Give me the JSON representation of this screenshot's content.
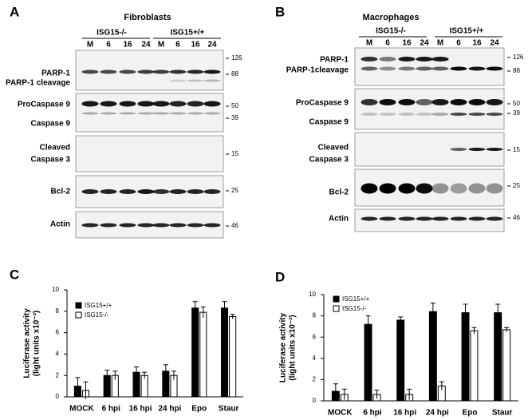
{
  "panel_a": {
    "label": "A",
    "title": "Fibroblasts",
    "groups": [
      "ISG15-/-",
      "ISG15+/+"
    ],
    "lanes": [
      "M",
      "6",
      "16",
      "24",
      "M",
      "6",
      "16",
      "24"
    ],
    "blots": [
      {
        "labels": [
          "PARP-1",
          "PARP-1 cleavage"
        ],
        "markers": [
          "126",
          "88"
        ]
      },
      {
        "labels": [
          "ProCaspase 9",
          "Caspase 9"
        ],
        "markers": [
          "50",
          "39"
        ]
      },
      {
        "labels": [
          "Cleaved",
          "Caspase 3"
        ],
        "markers": [
          "15"
        ]
      },
      {
        "labels": [
          "Bcl-2"
        ],
        "markers": [
          "25"
        ]
      },
      {
        "labels": [
          "Actin"
        ],
        "markers": [
          "46"
        ]
      }
    ]
  },
  "panel_b": {
    "label": "B",
    "title": "Macrophages",
    "groups": [
      "ISG15-/-",
      "ISG15+/+"
    ],
    "lanes": [
      "M",
      "6",
      "16",
      "24",
      "M",
      "6",
      "16",
      "24"
    ],
    "blots": [
      {
        "labels": [
          "PARP-1",
          "PARP-1cleavage"
        ],
        "markers": [
          "126",
          "88"
        ]
      },
      {
        "labels": [
          "ProCaspase 9",
          "Caspase 9"
        ],
        "markers": [
          "50",
          "39"
        ]
      },
      {
        "labels": [
          "Cleaved",
          "Caspase 3"
        ],
        "markers": [
          "15"
        ]
      },
      {
        "labels": [
          "Bcl-2"
        ],
        "markers": [
          "25"
        ]
      },
      {
        "labels": [
          "Actin"
        ],
        "markers": [
          "46"
        ]
      }
    ]
  },
  "chart_data": [
    {
      "type": "bar",
      "panel_label": "C",
      "y_label": [
        "Luciferase activity",
        "(light units x10⁻³)"
      ],
      "categories": [
        "MOCK",
        "6 hpi",
        "16 hpi",
        "24 hpi",
        "Epo",
        "Staur"
      ],
      "series": [
        {
          "name": "ISG15+/+",
          "color": "#000000",
          "values": [
            1.0,
            2.0,
            2.3,
            2.4,
            8.3,
            8.3
          ],
          "errors": [
            0.8,
            0.5,
            0.5,
            0.6,
            0.6,
            0.6
          ]
        },
        {
          "name": "ISG15-/-",
          "color": "#ffffff",
          "values": [
            0.6,
            2.0,
            2.0,
            2.0,
            7.9,
            7.5
          ],
          "errors": [
            0.8,
            0.4,
            0.3,
            0.4,
            0.5,
            0.2
          ]
        }
      ],
      "ylim": [
        0,
        10
      ],
      "yticks": [
        0,
        2,
        4,
        6,
        8,
        10
      ],
      "legend": "upper left"
    },
    {
      "type": "bar",
      "panel_label": "D",
      "y_label": [
        "Luciferase activity",
        "(light units x10⁻³)"
      ],
      "categories": [
        "MOCK",
        "6 hpi",
        "16 hpi",
        "24 hpi",
        "Epo",
        "Staur"
      ],
      "series": [
        {
          "name": "ISG15+/+",
          "color": "#000000",
          "values": [
            0.9,
            7.2,
            7.6,
            8.4,
            8.3,
            8.3
          ],
          "errors": [
            0.7,
            0.8,
            0.3,
            0.8,
            0.8,
            0.8
          ]
        },
        {
          "name": "ISG15-/-",
          "color": "#ffffff",
          "values": [
            0.6,
            0.6,
            0.6,
            1.4,
            6.6,
            6.7
          ],
          "errors": [
            0.5,
            0.4,
            0.5,
            0.4,
            0.3,
            0.2
          ]
        }
      ],
      "ylim": [
        0,
        10
      ],
      "yticks": [
        0,
        2,
        4,
        6,
        8,
        10
      ],
      "legend": "upper left"
    }
  ]
}
